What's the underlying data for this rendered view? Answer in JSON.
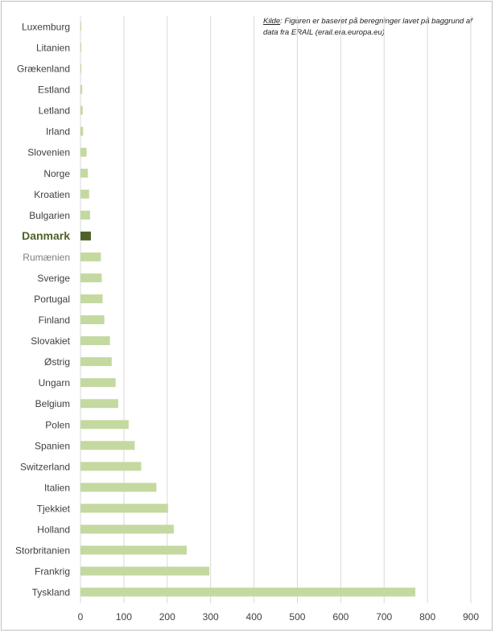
{
  "source": {
    "label": "Kilde",
    "text": ": Figuren er baseret på beregninger lavet på baggrund af data fra ERAIL (erail.era.europa.eu)"
  },
  "colors": {
    "bar": "#c4d9a0",
    "highlight": "#4f6228",
    "grid": "#d9d9d9",
    "label": "#404040",
    "highlight_label": "#4f6228",
    "muted_label": "#7f7f7f"
  },
  "chart_data": {
    "type": "bar",
    "orientation": "horizontal",
    "categories": [
      "Luxemburg",
      "Litanien",
      "Grækenland",
      "Estland",
      "Letland",
      "Irland",
      "Slovenien",
      "Norge",
      "Kroatien",
      "Bulgarien",
      "Danmark",
      "Rumænien",
      "Sverige",
      "Portugal",
      "Finland",
      "Slovakiet",
      "Østrig",
      "Ungarn",
      "Belgium",
      "Polen",
      "Spanien",
      "Switzerland",
      "Italien",
      "Tjekkiet",
      "Holland",
      "Storbritanien",
      "Frankrig",
      "Tyskland"
    ],
    "values": [
      1,
      2,
      2,
      4,
      5,
      6,
      14,
      17,
      20,
      22,
      24,
      47,
      49,
      51,
      55,
      68,
      72,
      81,
      87,
      111,
      125,
      140,
      175,
      202,
      215,
      245,
      297,
      772
    ],
    "highlight": "Danmark",
    "muted": "Rumænien",
    "xlim": [
      0,
      900
    ],
    "xticks": [
      0,
      100,
      200,
      300,
      400,
      500,
      600,
      700,
      800,
      900
    ],
    "grid": true,
    "title": "",
    "xlabel": "",
    "ylabel": ""
  }
}
